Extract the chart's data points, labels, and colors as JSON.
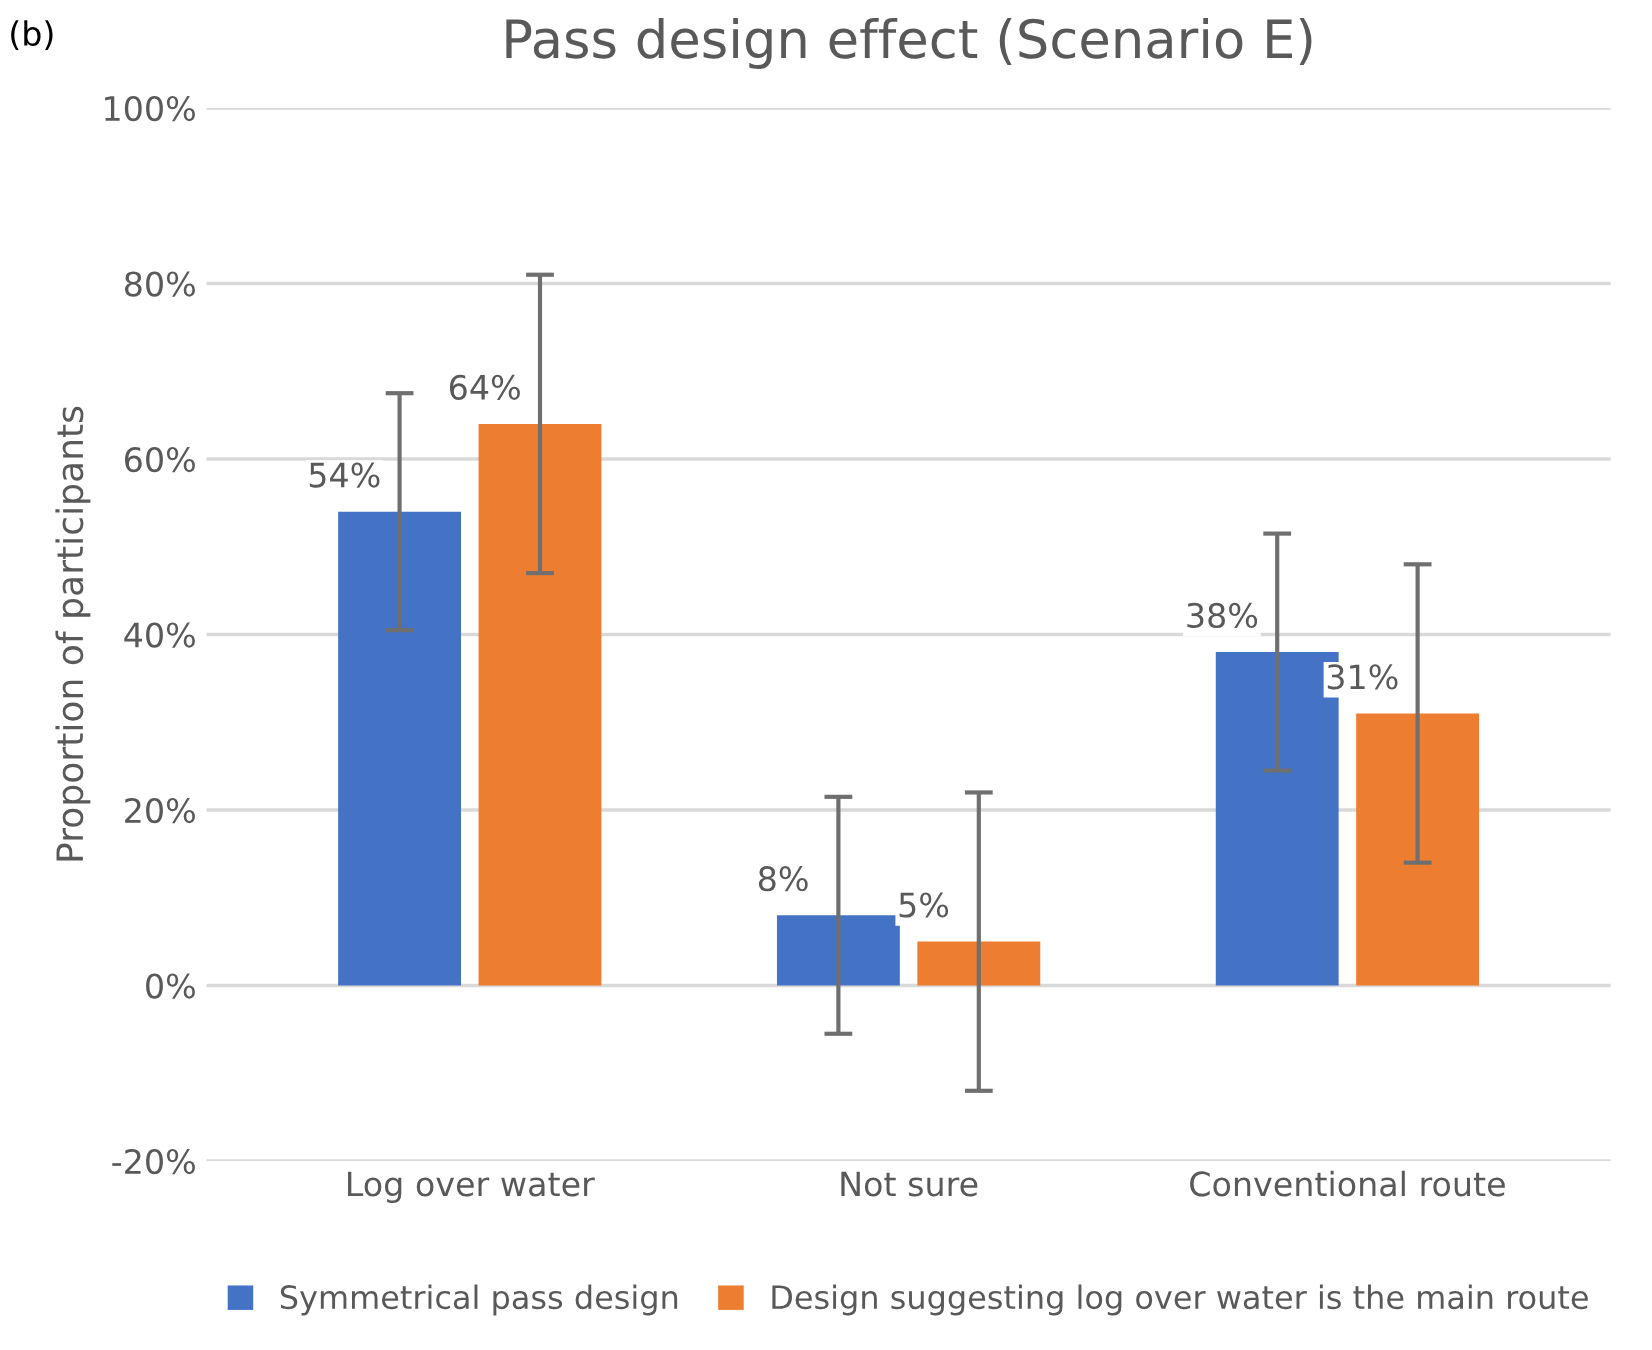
{
  "chart_data": {
    "type": "bar",
    "title": "Pass design effect (Scenario E)",
    "ylabel": "Proportion of participants",
    "annotations": [
      "(b)"
    ],
    "categories": [
      "Log over water",
      "Not sure",
      "Conventional route"
    ],
    "series": [
      {
        "name": "Symmetrical pass design",
        "color": "#4472c4",
        "values": [
          54,
          8,
          38
        ],
        "value_labels": [
          "54%",
          "8%",
          "38%"
        ],
        "errors": [
          13.5,
          13.5,
          13.5
        ]
      },
      {
        "name": "Design suggesting log over water is the main route",
        "color": "#ed7d31",
        "values": [
          64,
          5,
          31
        ],
        "value_labels": [
          "64%",
          "5%",
          "31%"
        ],
        "errors": [
          17,
          17,
          17
        ]
      }
    ],
    "ylim": [
      -20,
      100
    ],
    "yticks": [
      {
        "value": -20,
        "label": "-20%"
      },
      {
        "value": 0,
        "label": "0%"
      },
      {
        "value": 20,
        "label": "20%"
      },
      {
        "value": 40,
        "label": "40%"
      },
      {
        "value": 60,
        "label": "60%"
      },
      {
        "value": 80,
        "label": "80%"
      },
      {
        "value": 100,
        "label": "100%"
      }
    ],
    "grid": "y",
    "legend": "bottom"
  }
}
